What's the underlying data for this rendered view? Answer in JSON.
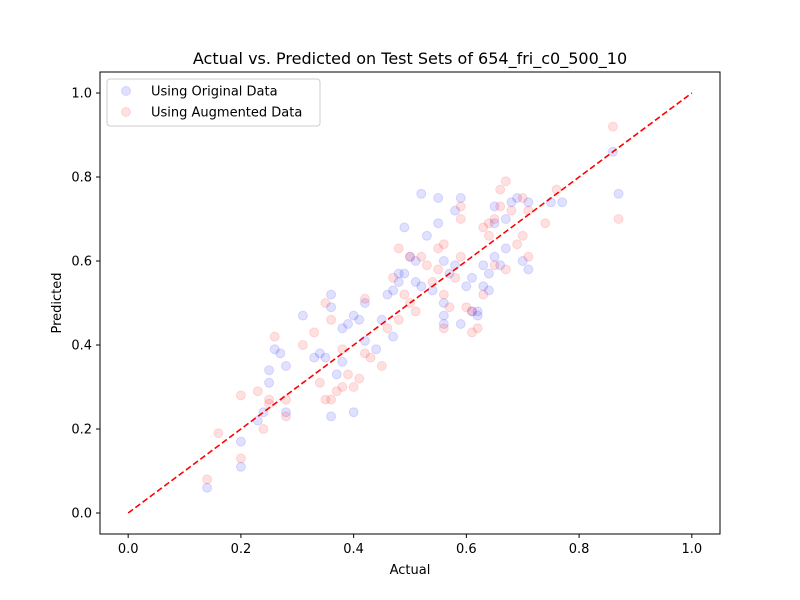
{
  "chart_data": {
    "type": "scatter",
    "title": "Actual vs. Predicted on Test Sets of 654_fri_c0_500_10",
    "xlabel": "Actual",
    "ylabel": "Predicted",
    "xlim": [
      -0.05,
      1.05
    ],
    "ylim": [
      -0.05,
      1.05
    ],
    "xticks": [
      "0.0",
      "0.2",
      "0.4",
      "0.6",
      "0.8",
      "1.0"
    ],
    "yticks": [
      "0.0",
      "0.2",
      "0.4",
      "0.6",
      "0.8",
      "1.0"
    ],
    "grid": false,
    "legend_position": "upper-left",
    "reference_line": {
      "style": "dashed",
      "color": "#ff0000",
      "x": [
        0,
        1
      ],
      "y": [
        0,
        1
      ]
    },
    "series": [
      {
        "name": "Using Original Data",
        "color": "#0000ff",
        "alpha": 0.12,
        "points": [
          [
            0.14,
            0.06
          ],
          [
            0.2,
            0.11
          ],
          [
            0.2,
            0.17
          ],
          [
            0.23,
            0.22
          ],
          [
            0.24,
            0.24
          ],
          [
            0.28,
            0.24
          ],
          [
            0.25,
            0.31
          ],
          [
            0.25,
            0.34
          ],
          [
            0.26,
            0.39
          ],
          [
            0.27,
            0.38
          ],
          [
            0.28,
            0.35
          ],
          [
            0.31,
            0.47
          ],
          [
            0.33,
            0.37
          ],
          [
            0.34,
            0.38
          ],
          [
            0.35,
            0.37
          ],
          [
            0.36,
            0.49
          ],
          [
            0.36,
            0.52
          ],
          [
            0.36,
            0.23
          ],
          [
            0.37,
            0.33
          ],
          [
            0.38,
            0.36
          ],
          [
            0.38,
            0.44
          ],
          [
            0.39,
            0.45
          ],
          [
            0.4,
            0.47
          ],
          [
            0.4,
            0.24
          ],
          [
            0.41,
            0.46
          ],
          [
            0.42,
            0.5
          ],
          [
            0.42,
            0.41
          ],
          [
            0.44,
            0.39
          ],
          [
            0.45,
            0.46
          ],
          [
            0.46,
            0.52
          ],
          [
            0.47,
            0.42
          ],
          [
            0.47,
            0.53
          ],
          [
            0.48,
            0.55
          ],
          [
            0.48,
            0.57
          ],
          [
            0.49,
            0.57
          ],
          [
            0.49,
            0.68
          ],
          [
            0.5,
            0.61
          ],
          [
            0.51,
            0.6
          ],
          [
            0.51,
            0.55
          ],
          [
            0.52,
            0.54
          ],
          [
            0.52,
            0.76
          ],
          [
            0.53,
            0.66
          ],
          [
            0.54,
            0.53
          ],
          [
            0.55,
            0.69
          ],
          [
            0.55,
            0.75
          ],
          [
            0.56,
            0.6
          ],
          [
            0.56,
            0.5
          ],
          [
            0.56,
            0.47
          ],
          [
            0.56,
            0.45
          ],
          [
            0.57,
            0.57
          ],
          [
            0.58,
            0.59
          ],
          [
            0.58,
            0.72
          ],
          [
            0.59,
            0.75
          ],
          [
            0.59,
            0.45
          ],
          [
            0.6,
            0.54
          ],
          [
            0.61,
            0.56
          ],
          [
            0.61,
            0.48
          ],
          [
            0.62,
            0.47
          ],
          [
            0.62,
            0.48
          ],
          [
            0.63,
            0.59
          ],
          [
            0.63,
            0.54
          ],
          [
            0.64,
            0.53
          ],
          [
            0.64,
            0.57
          ],
          [
            0.65,
            0.61
          ],
          [
            0.65,
            0.69
          ],
          [
            0.65,
            0.73
          ],
          [
            0.66,
            0.59
          ],
          [
            0.67,
            0.7
          ],
          [
            0.67,
            0.63
          ],
          [
            0.68,
            0.74
          ],
          [
            0.69,
            0.75
          ],
          [
            0.7,
            0.6
          ],
          [
            0.71,
            0.58
          ],
          [
            0.71,
            0.74
          ],
          [
            0.75,
            0.74
          ],
          [
            0.77,
            0.74
          ],
          [
            0.86,
            0.86
          ],
          [
            0.87,
            0.76
          ]
        ]
      },
      {
        "name": "Using Augmented Data",
        "color": "#ff0000",
        "alpha": 0.12,
        "points": [
          [
            0.14,
            0.08
          ],
          [
            0.16,
            0.19
          ],
          [
            0.2,
            0.13
          ],
          [
            0.2,
            0.28
          ],
          [
            0.23,
            0.29
          ],
          [
            0.24,
            0.2
          ],
          [
            0.25,
            0.27
          ],
          [
            0.25,
            0.26
          ],
          [
            0.26,
            0.42
          ],
          [
            0.28,
            0.23
          ],
          [
            0.28,
            0.27
          ],
          [
            0.31,
            0.4
          ],
          [
            0.33,
            0.43
          ],
          [
            0.34,
            0.31
          ],
          [
            0.35,
            0.27
          ],
          [
            0.35,
            0.5
          ],
          [
            0.36,
            0.46
          ],
          [
            0.36,
            0.27
          ],
          [
            0.37,
            0.29
          ],
          [
            0.38,
            0.39
          ],
          [
            0.38,
            0.3
          ],
          [
            0.39,
            0.33
          ],
          [
            0.4,
            0.3
          ],
          [
            0.41,
            0.32
          ],
          [
            0.42,
            0.51
          ],
          [
            0.42,
            0.38
          ],
          [
            0.43,
            0.37
          ],
          [
            0.45,
            0.35
          ],
          [
            0.46,
            0.44
          ],
          [
            0.47,
            0.56
          ],
          [
            0.48,
            0.63
          ],
          [
            0.48,
            0.46
          ],
          [
            0.49,
            0.52
          ],
          [
            0.5,
            0.61
          ],
          [
            0.5,
            0.5
          ],
          [
            0.51,
            0.48
          ],
          [
            0.52,
            0.61
          ],
          [
            0.53,
            0.59
          ],
          [
            0.54,
            0.55
          ],
          [
            0.55,
            0.63
          ],
          [
            0.55,
            0.58
          ],
          [
            0.56,
            0.52
          ],
          [
            0.56,
            0.44
          ],
          [
            0.56,
            0.64
          ],
          [
            0.57,
            0.49
          ],
          [
            0.58,
            0.56
          ],
          [
            0.59,
            0.61
          ],
          [
            0.59,
            0.7
          ],
          [
            0.59,
            0.73
          ],
          [
            0.6,
            0.49
          ],
          [
            0.61,
            0.43
          ],
          [
            0.61,
            0.48
          ],
          [
            0.62,
            0.44
          ],
          [
            0.63,
            0.52
          ],
          [
            0.63,
            0.68
          ],
          [
            0.64,
            0.66
          ],
          [
            0.64,
            0.69
          ],
          [
            0.65,
            0.59
          ],
          [
            0.65,
            0.7
          ],
          [
            0.66,
            0.73
          ],
          [
            0.66,
            0.77
          ],
          [
            0.67,
            0.79
          ],
          [
            0.67,
            0.58
          ],
          [
            0.68,
            0.72
          ],
          [
            0.69,
            0.64
          ],
          [
            0.7,
            0.75
          ],
          [
            0.7,
            0.66
          ],
          [
            0.71,
            0.72
          ],
          [
            0.71,
            0.61
          ],
          [
            0.74,
            0.69
          ],
          [
            0.76,
            0.77
          ],
          [
            0.86,
            0.92
          ],
          [
            0.87,
            0.7
          ]
        ]
      }
    ]
  }
}
